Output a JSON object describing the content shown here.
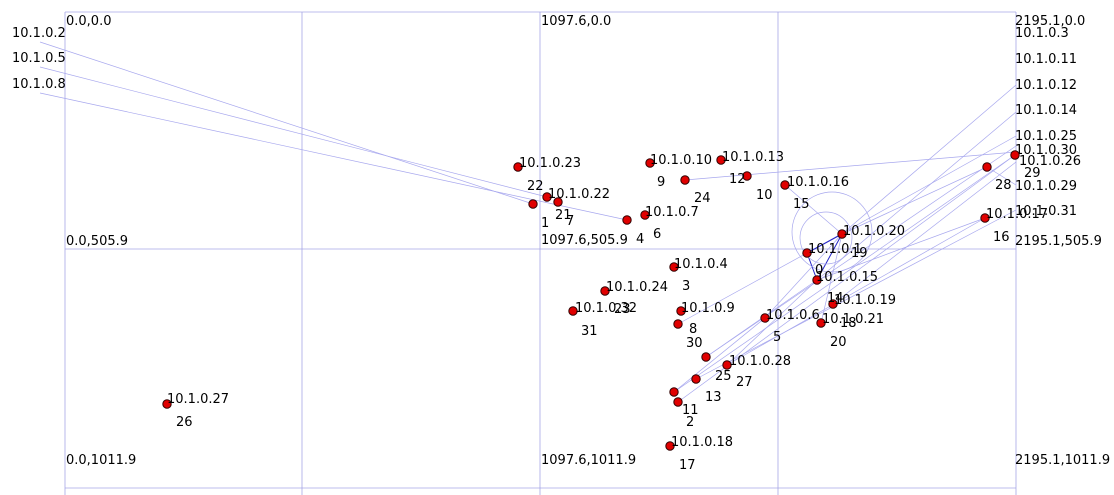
{
  "canvas": {
    "corners": {
      "top_left": "0.0,0.0",
      "top_mid": "1097.6,0.0",
      "top_right": "2195.1,0.0",
      "mid_left": "0.0,505.9",
      "center": "1097.6,505.9",
      "mid_right": "2195.1,505.9",
      "bottom_left": "0.0,1011.9",
      "bottom_mid": "1097.6,1011.9",
      "bottom_right": "2195.1,1011.9"
    }
  },
  "edge_hosts": {
    "left": [
      "10.1.0.2",
      "10.1.0.5",
      "10.1.0.8"
    ],
    "right": [
      "10.1.0.3",
      "10.1.0.11",
      "10.1.0.12",
      "10.1.0.14",
      "10.1.0.25",
      "10.1.0.30",
      "10.1.0.26",
      "10.1.0.29",
      "10.1.0.31"
    ]
  },
  "nodes": [
    {
      "id": "0",
      "ip": "10.1.0.15"
    },
    {
      "id": "1",
      "ip": ""
    },
    {
      "id": "2",
      "ip": ""
    },
    {
      "id": "3",
      "ip": "10.1.0.4"
    },
    {
      "id": "4",
      "ip": ""
    },
    {
      "id": "5",
      "ip": "10.1.0.6"
    },
    {
      "id": "6",
      "ip": "10.1.0.7"
    },
    {
      "id": "7",
      "ip": ""
    },
    {
      "id": "8",
      "ip": "10.1.0.9"
    },
    {
      "id": "9",
      "ip": "10.1.0.10"
    },
    {
      "id": "10",
      "ip": ""
    },
    {
      "id": "11",
      "ip": ""
    },
    {
      "id": "12",
      "ip": "10.1.0.13"
    },
    {
      "id": "13",
      "ip": ""
    },
    {
      "id": "14",
      "ip": "10.1.0.19"
    },
    {
      "id": "15",
      "ip": "10.1.0.16"
    },
    {
      "id": "16",
      "ip": "10.1.0.17"
    },
    {
      "id": "17",
      "ip": "10.1.0.18"
    },
    {
      "id": "18",
      "ip": "10.1.0.21"
    },
    {
      "id": "19",
      "ip": "10.1.0.20"
    },
    {
      "id": "20",
      "ip": ""
    },
    {
      "id": "21",
      "ip": "10.1.0.22"
    },
    {
      "id": "22",
      "ip": "10.1.0.23"
    },
    {
      "id": "23",
      "ip": "10.1.0.24"
    },
    {
      "id": "24",
      "ip": ""
    },
    {
      "id": "25",
      "ip": ""
    },
    {
      "id": "26",
      "ip": "10.1.0.27"
    },
    {
      "id": "27",
      "ip": "10.1.0.28"
    },
    {
      "id": "28",
      "ip": ""
    },
    {
      "id": "29",
      "ip": ""
    },
    {
      "id": "30",
      "ip": ""
    },
    {
      "id": "31",
      "ip": "10.1.0.32"
    },
    {
      "id": "",
      "ip": "10.1.0.1"
    }
  ]
}
